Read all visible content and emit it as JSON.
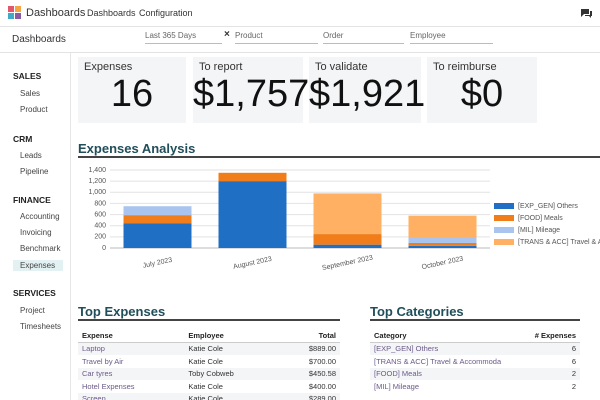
{
  "nav": {
    "app": "Dashboards",
    "menu": [
      "Dashboards",
      "Configuration"
    ]
  },
  "control": {
    "title": "Dashboards",
    "filters": [
      "Last 365 Days",
      "Product",
      "Order",
      "Employee"
    ]
  },
  "sidebar": [
    {
      "title": "SALES",
      "items": [
        "Sales",
        "Product"
      ]
    },
    {
      "title": "CRM",
      "items": [
        "Leads",
        "Pipeline"
      ]
    },
    {
      "title": "FINANCE",
      "items": [
        "Accounting",
        "Invoicing",
        "Benchmark",
        "Expenses"
      ]
    },
    {
      "title": "SERVICES",
      "items": [
        "Project",
        "Timesheets"
      ]
    }
  ],
  "kpis": [
    {
      "label": "Expenses",
      "value": "16"
    },
    {
      "label": "To report",
      "value": "$1,757"
    },
    {
      "label": "To validate",
      "value": "$1,921"
    },
    {
      "label": "To reimburse",
      "value": "$0"
    }
  ],
  "chart_data": {
    "type": "stacked_bar",
    "title": "Expenses Analysis",
    "categories": [
      "July 2023",
      "August 2023",
      "September 2023",
      "October 2023"
    ],
    "series": [
      {
        "name": "[EXP_GEN] Others",
        "color": "#1f6fc5",
        "values": [
          440,
          1200,
          60,
          40
        ]
      },
      {
        "name": "[FOOD] Meals",
        "color": "#f07d1a",
        "values": [
          150,
          150,
          190,
          50
        ]
      },
      {
        "name": "[MIL] Mileage",
        "color": "#a9c5ef",
        "values": [
          160,
          0,
          0,
          90
        ]
      },
      {
        "name": "[TRANS & ACC] Travel & A",
        "color": "#ffb062",
        "values": [
          0,
          0,
          730,
          400
        ]
      }
    ],
    "ylim": [
      0,
      1400
    ],
    "yticks": [
      0,
      200,
      400,
      600,
      800,
      {
        "value": 1000,
        "label": "1,000"
      },
      {
        "value": 1200,
        "label": "1,200"
      },
      {
        "value": 1400,
        "label": "1,400"
      }
    ],
    "grid": true,
    "legend": "right"
  },
  "top_expenses": {
    "title": "Top Expenses",
    "columns": [
      "Expense",
      "Employee",
      "Total"
    ],
    "rows": [
      [
        "Laptop",
        "Katie Cole",
        "$889.00"
      ],
      [
        "Travel by Air",
        "Katie Cole",
        "$700.00"
      ],
      [
        "Car tyres",
        "Toby Cobweb",
        "$450.58"
      ],
      [
        "Hotel Expenses",
        "Katie Cole",
        "$400.00"
      ],
      [
        "Screen",
        "Katie Cole",
        "$289.00"
      ]
    ]
  },
  "top_categories": {
    "title": "Top Categories",
    "columns": [
      "Category",
      "# Expenses"
    ],
    "rows": [
      [
        "[EXP_GEN] Others",
        "6"
      ],
      [
        "[TRANS & ACC] Travel & Accommoda",
        "6"
      ],
      [
        "[FOOD] Meals",
        "2"
      ],
      [
        "[MIL] Mileage",
        "2"
      ]
    ]
  }
}
